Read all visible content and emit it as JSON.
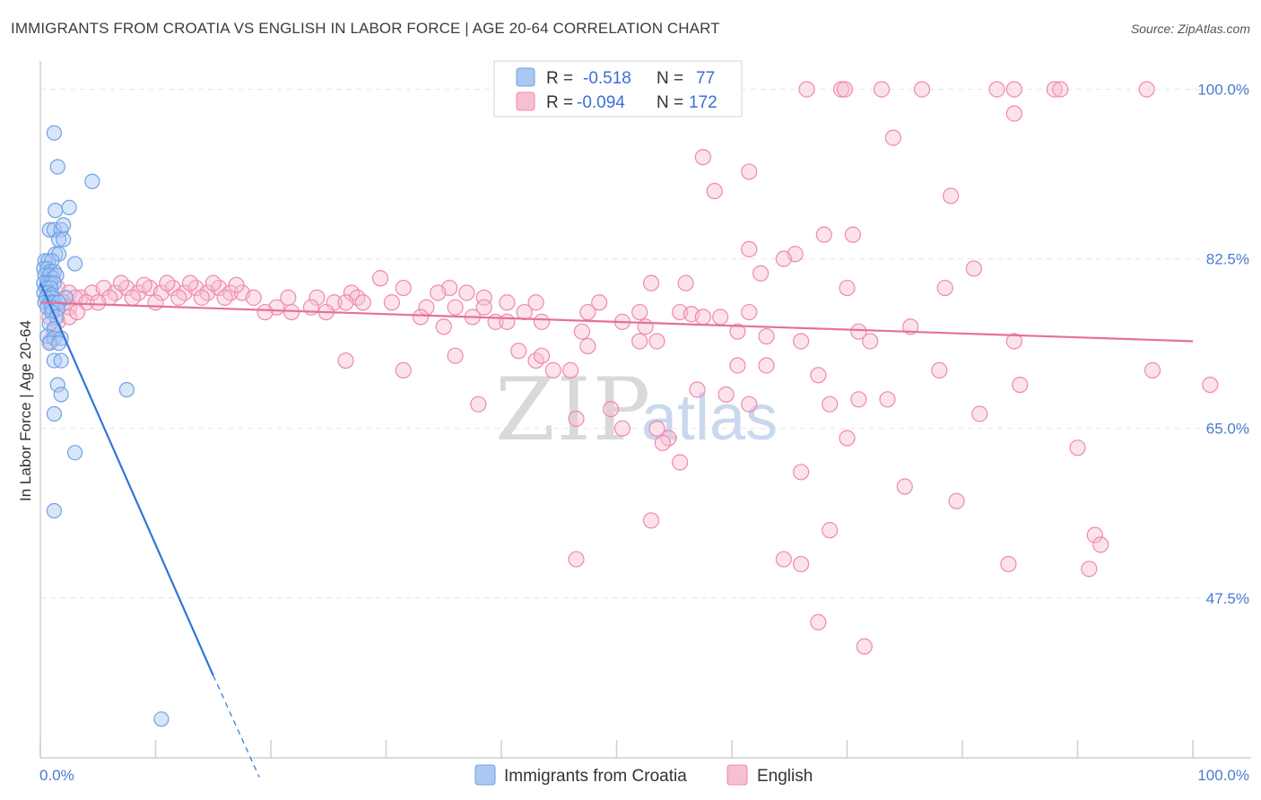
{
  "title": "IMMIGRANTS FROM CROATIA VS ENGLISH IN LABOR FORCE | AGE 20-64 CORRELATION CHART",
  "source": "Source: ZipAtlas.com",
  "watermark": {
    "zip": "ZIP",
    "atlas": "atlas"
  },
  "colors": {
    "blue": "#6fa1e6",
    "blue_fill": "#a9c8f2",
    "blue_line": "#2f74d6",
    "pink": "#ef89ad",
    "pink_fill": "#f7bfd2",
    "pink_line": "#e5709b",
    "grid": "#e6e6e6",
    "tick_text": "#4a7bd0"
  },
  "legend": {
    "r_label": "R =",
    "n_label": "N =",
    "series": [
      {
        "name": "Immigrants from Croatia",
        "r": "-0.518",
        "n": "77",
        "color": "blue"
      },
      {
        "name": "English",
        "r": "-0.094",
        "n": "172",
        "color": "pink"
      }
    ]
  },
  "chart_data": {
    "type": "scatter",
    "title": "IMMIGRANTS FROM CROATIA VS ENGLISH IN LABOR FORCE | AGE 20-64 CORRELATION CHART",
    "xlabel": "",
    "ylabel": "In Labor Force | Age 20-64",
    "xlim": [
      0,
      100
    ],
    "ylim": [
      31,
      102
    ],
    "x_tick_labels": [
      "0.0%",
      "100.0%"
    ],
    "y_ticks": [
      47.5,
      65.0,
      82.5,
      100.0
    ],
    "y_tick_labels": [
      "47.5%",
      "65.0%",
      "82.5%",
      "100.0%"
    ],
    "series": [
      {
        "name": "Immigrants from Croatia",
        "color": "blue",
        "trend": {
          "x0": 0.0,
          "y0": 80.0,
          "x1": 15.0,
          "y1": 39.5,
          "dash_to_x": 19.0,
          "dash_to_y": 29.0
        },
        "points": [
          [
            1.2,
            95.5
          ],
          [
            1.5,
            92.0
          ],
          [
            4.5,
            90.5
          ],
          [
            1.3,
            87.5
          ],
          [
            2.5,
            87.8
          ],
          [
            0.8,
            85.5
          ],
          [
            1.2,
            85.5
          ],
          [
            1.8,
            85.5
          ],
          [
            2.0,
            86.0
          ],
          [
            1.6,
            84.5
          ],
          [
            2.0,
            84.5
          ],
          [
            1.3,
            83.0
          ],
          [
            1.6,
            83.0
          ],
          [
            0.4,
            82.3
          ],
          [
            0.7,
            82.3
          ],
          [
            1.0,
            82.3
          ],
          [
            3.0,
            82.0
          ],
          [
            0.3,
            81.5
          ],
          [
            0.6,
            81.5
          ],
          [
            0.9,
            81.2
          ],
          [
            1.2,
            81.2
          ],
          [
            0.4,
            80.8
          ],
          [
            0.8,
            80.8
          ],
          [
            1.1,
            80.5
          ],
          [
            1.4,
            80.8
          ],
          [
            0.3,
            80.0
          ],
          [
            0.6,
            80.0
          ],
          [
            0.9,
            80.0
          ],
          [
            1.2,
            80.0
          ],
          [
            0.5,
            79.5
          ],
          [
            0.9,
            79.5
          ],
          [
            0.3,
            79.0
          ],
          [
            0.7,
            79.0
          ],
          [
            1.0,
            78.8
          ],
          [
            0.5,
            78.5
          ],
          [
            1.0,
            78.5
          ],
          [
            2.2,
            78.5
          ],
          [
            0.4,
            78.0
          ],
          [
            0.8,
            78.0
          ],
          [
            1.2,
            78.0
          ],
          [
            1.6,
            78.0
          ],
          [
            0.6,
            77.5
          ],
          [
            1.0,
            77.5
          ],
          [
            1.5,
            77.3
          ],
          [
            1.0,
            77.0
          ],
          [
            1.4,
            76.5
          ],
          [
            0.8,
            75.8
          ],
          [
            1.2,
            75.3
          ],
          [
            0.6,
            74.5
          ],
          [
            1.2,
            74.3
          ],
          [
            1.8,
            74.3
          ],
          [
            0.8,
            73.8
          ],
          [
            1.6,
            73.8
          ],
          [
            1.2,
            72.0
          ],
          [
            1.8,
            72.0
          ],
          [
            1.5,
            69.5
          ],
          [
            7.5,
            69.0
          ],
          [
            1.8,
            68.5
          ],
          [
            1.2,
            66.5
          ],
          [
            3.0,
            62.5
          ],
          [
            1.2,
            56.5
          ],
          [
            10.5,
            35.0
          ]
        ]
      },
      {
        "name": "English",
        "color": "pink",
        "trend": {
          "x0": 0.0,
          "y0": 78.0,
          "x1": 100.0,
          "y1": 74.0
        },
        "points": [
          [
            66.5,
            100.0
          ],
          [
            69.5,
            100.0
          ],
          [
            69.8,
            100.0
          ],
          [
            73.0,
            100.0
          ],
          [
            76.5,
            100.0
          ],
          [
            83.0,
            100.0
          ],
          [
            84.5,
            100.0
          ],
          [
            88.0,
            100.0
          ],
          [
            88.5,
            100.0
          ],
          [
            96.0,
            100.0
          ],
          [
            84.5,
            97.5
          ],
          [
            74.0,
            95.0
          ],
          [
            57.5,
            93.0
          ],
          [
            61.5,
            91.5
          ],
          [
            58.5,
            89.5
          ],
          [
            79.0,
            89.0
          ],
          [
            68.0,
            85.0
          ],
          [
            70.5,
            85.0
          ],
          [
            61.5,
            83.5
          ],
          [
            65.5,
            83.0
          ],
          [
            64.5,
            82.5
          ],
          [
            81.0,
            81.5
          ],
          [
            62.5,
            81.0
          ],
          [
            29.5,
            80.5
          ],
          [
            53.0,
            80.0
          ],
          [
            56.0,
            80.0
          ],
          [
            31.5,
            79.5
          ],
          [
            70.0,
            79.5
          ],
          [
            78.5,
            79.5
          ],
          [
            35.5,
            79.5
          ],
          [
            34.5,
            79.0
          ],
          [
            37.0,
            79.0
          ],
          [
            27.0,
            79.0
          ],
          [
            27.5,
            78.5
          ],
          [
            38.5,
            78.5
          ],
          [
            21.5,
            78.5
          ],
          [
            24.0,
            78.5
          ],
          [
            25.5,
            78.0
          ],
          [
            26.5,
            78.0
          ],
          [
            40.5,
            78.0
          ],
          [
            28.0,
            78.0
          ],
          [
            30.5,
            78.0
          ],
          [
            43.0,
            78.0
          ],
          [
            48.5,
            78.0
          ],
          [
            33.5,
            77.5
          ],
          [
            36.0,
            77.5
          ],
          [
            38.5,
            77.5
          ],
          [
            20.5,
            77.5
          ],
          [
            21.8,
            77.0
          ],
          [
            19.5,
            77.0
          ],
          [
            23.5,
            77.5
          ],
          [
            24.8,
            77.0
          ],
          [
            37.5,
            76.5
          ],
          [
            42.0,
            77.0
          ],
          [
            47.5,
            77.0
          ],
          [
            52.0,
            77.0
          ],
          [
            55.5,
            77.0
          ],
          [
            59.0,
            76.5
          ],
          [
            61.5,
            77.0
          ],
          [
            33.0,
            76.5
          ],
          [
            56.5,
            76.8
          ],
          [
            57.5,
            76.5
          ],
          [
            39.5,
            76.0
          ],
          [
            40.5,
            76.0
          ],
          [
            43.5,
            76.0
          ],
          [
            35.0,
            75.5
          ],
          [
            50.5,
            76.0
          ],
          [
            52.5,
            75.5
          ],
          [
            47.0,
            75.0
          ],
          [
            60.5,
            75.0
          ],
          [
            71.0,
            75.0
          ],
          [
            75.5,
            75.5
          ],
          [
            63.0,
            74.5
          ],
          [
            66.0,
            74.0
          ],
          [
            72.0,
            74.0
          ],
          [
            52.0,
            74.0
          ],
          [
            53.5,
            74.0
          ],
          [
            84.5,
            74.0
          ],
          [
            47.5,
            73.5
          ],
          [
            41.5,
            73.0
          ],
          [
            36.0,
            72.5
          ],
          [
            26.5,
            72.0
          ],
          [
            43.0,
            72.0
          ],
          [
            43.5,
            72.5
          ],
          [
            46.0,
            71.0
          ],
          [
            44.5,
            71.0
          ],
          [
            31.5,
            71.0
          ],
          [
            63.0,
            71.5
          ],
          [
            60.5,
            71.5
          ],
          [
            78.0,
            71.0
          ],
          [
            96.5,
            71.0
          ],
          [
            67.5,
            70.5
          ],
          [
            85.0,
            69.5
          ],
          [
            101.5,
            69.5
          ],
          [
            57.0,
            69.0
          ],
          [
            59.5,
            68.5
          ],
          [
            71.0,
            68.0
          ],
          [
            73.5,
            68.0
          ],
          [
            61.5,
            67.5
          ],
          [
            68.5,
            67.5
          ],
          [
            81.5,
            66.5
          ],
          [
            38.0,
            67.5
          ],
          [
            49.5,
            67.0
          ],
          [
            46.5,
            66.0
          ],
          [
            50.5,
            65.0
          ],
          [
            53.5,
            65.0
          ],
          [
            54.5,
            64.0
          ],
          [
            54.0,
            63.5
          ],
          [
            70.0,
            64.0
          ],
          [
            90.0,
            63.0
          ],
          [
            55.5,
            61.5
          ],
          [
            66.0,
            60.5
          ],
          [
            75.0,
            59.0
          ],
          [
            79.5,
            57.5
          ],
          [
            53.0,
            55.5
          ],
          [
            68.5,
            54.5
          ],
          [
            91.5,
            54.0
          ],
          [
            92.0,
            53.0
          ],
          [
            46.5,
            51.5
          ],
          [
            64.5,
            51.5
          ],
          [
            66.0,
            51.0
          ],
          [
            84.0,
            51.0
          ],
          [
            91.0,
            50.5
          ],
          [
            67.5,
            45.0
          ],
          [
            71.5,
            42.5
          ],
          [
            1.5,
            79.5
          ],
          [
            2.5,
            79.0
          ],
          [
            3.5,
            78.5
          ],
          [
            4.5,
            79.0
          ],
          [
            5.5,
            79.5
          ],
          [
            6.5,
            79.0
          ],
          [
            7.5,
            79.5
          ],
          [
            8.5,
            79.0
          ],
          [
            9.5,
            79.5
          ],
          [
            10.5,
            79.0
          ],
          [
            11.5,
            79.5
          ],
          [
            12.5,
            79.0
          ],
          [
            13.5,
            79.5
          ],
          [
            14.5,
            79.0
          ],
          [
            15.5,
            79.5
          ],
          [
            16.5,
            79.0
          ],
          [
            17.5,
            79.0
          ],
          [
            18.5,
            78.5
          ],
          [
            2.0,
            78.0
          ],
          [
            3.0,
            78.5
          ],
          [
            4.0,
            78.0
          ],
          [
            6.0,
            78.5
          ],
          [
            8.0,
            78.5
          ],
          [
            10.0,
            78.0
          ],
          [
            12.0,
            78.5
          ],
          [
            14.0,
            78.5
          ],
          [
            16.0,
            78.5
          ],
          [
            1.0,
            77.5
          ],
          [
            2.5,
            77.5
          ],
          [
            5.0,
            78.0
          ],
          [
            0.8,
            76.5
          ],
          [
            1.5,
            76.0
          ],
          [
            2.5,
            76.5
          ],
          [
            3.2,
            77.0
          ],
          [
            1.2,
            75.0
          ],
          [
            0.9,
            74.0
          ],
          [
            9.0,
            79.8
          ],
          [
            13.0,
            80.0
          ],
          [
            15.0,
            80.0
          ],
          [
            17.0,
            79.8
          ],
          [
            11.0,
            80.0
          ],
          [
            7.0,
            80.0
          ]
        ]
      }
    ]
  },
  "bottom_legend": [
    {
      "label": "Immigrants from Croatia",
      "color": "blue"
    },
    {
      "label": "English",
      "color": "pink"
    }
  ]
}
